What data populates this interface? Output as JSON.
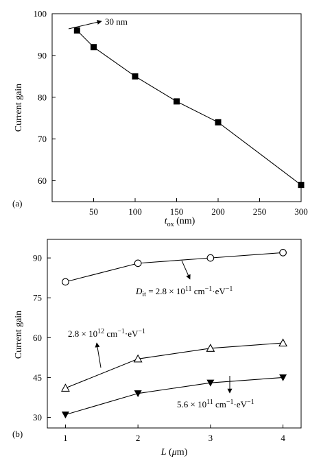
{
  "chart_data": [
    {
      "type": "line",
      "panel_label": "(a)",
      "xlabel": {
        "main": "t",
        "sub": "ox",
        "unit": " (nm)"
      },
      "ylabel": "Current gain",
      "xlim": [
        0,
        300
      ],
      "ylim": [
        55,
        100
      ],
      "xticks": [
        "50",
        "100",
        "150",
        "200",
        "250",
        "300"
      ],
      "yticks": [
        "60",
        "70",
        "80",
        "90",
        "100"
      ],
      "grid": false,
      "series": [
        {
          "marker": "filled-square",
          "x": [
            30,
            50,
            100,
            150,
            200,
            300
          ],
          "y": [
            96,
            92,
            85,
            79,
            74,
            59
          ]
        }
      ],
      "annotations": [
        {
          "text": "30 nm",
          "points_to": {
            "x": 30,
            "y": 96
          }
        }
      ]
    },
    {
      "type": "line",
      "panel_label": "(b)",
      "xlabel": {
        "main": "L",
        "unit_prefix": " (",
        "unit_mu": "μ",
        "unit_rest": "m)"
      },
      "ylabel": "Current gain",
      "xlim": [
        0.75,
        4.25
      ],
      "ylim": [
        26,
        97
      ],
      "xticks": [
        "1",
        "2",
        "3",
        "4"
      ],
      "yticks": [
        "30",
        "45",
        "60",
        "75",
        "90"
      ],
      "grid": false,
      "series": [
        {
          "marker": "open-circle",
          "x": [
            1,
            2,
            3,
            4
          ],
          "y": [
            81,
            88,
            90,
            92
          ]
        },
        {
          "marker": "open-triangle",
          "x": [
            1,
            2,
            3,
            4
          ],
          "y": [
            41,
            52,
            56,
            58
          ]
        },
        {
          "marker": "filled-down-triangle",
          "x": [
            1,
            2,
            3,
            4
          ],
          "y": [
            31,
            39,
            43,
            45
          ]
        }
      ],
      "annotations": [
        {
          "series": 0,
          "prefix": "D",
          "prefix_sub": "it",
          "mid": " = 2.8 × 10",
          "exp": "11",
          "unit1": " cm",
          "unit1_exp": "−1",
          "unit2": "·eV",
          "unit2_exp": "−1"
        },
        {
          "series": 1,
          "prefix": "",
          "prefix_sub": "",
          "mid": "2.8 × 10",
          "exp": "12",
          "unit1": " cm",
          "unit1_exp": "−1",
          "unit2": "·eV",
          "unit2_exp": "−1"
        },
        {
          "series": 2,
          "prefix": "",
          "prefix_sub": "",
          "mid": "5.6 × 10",
          "exp": "11",
          "unit1": " cm",
          "unit1_exp": "−1",
          "unit2": "·eV",
          "unit2_exp": "−1"
        }
      ]
    }
  ]
}
